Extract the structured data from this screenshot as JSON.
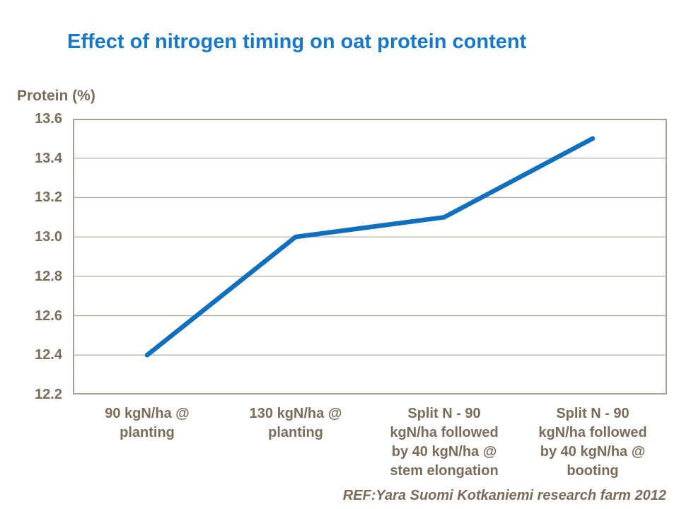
{
  "page": {
    "background_color": "#FFFFFF"
  },
  "header": {
    "title": "Effect of nitrogen timing on oat protein content",
    "title_color": "#1777C8"
  },
  "chart_data": {
    "type": "line",
    "title": "Effect of nitrogen timing on oat protein content",
    "xlabel": "",
    "ylabel": "Protein (%)",
    "categories": [
      "90 kgN/ha @ planting",
      "130 kgN/ha @ planting",
      "Split N - 90 kgN/ha followed by 40 kgN/ha @ stem elongation",
      "Split N - 90 kgN/ha followed by 40 kgN/ha @ booting"
    ],
    "category_lines": [
      [
        "90 kgN/ha @",
        "planting"
      ],
      [
        "130 kgN/ha @",
        "planting"
      ],
      [
        "Split N - 90",
        "kgN/ha followed",
        "by 40 kgN/ha @",
        "stem elongation"
      ],
      [
        "Split N - 90",
        "kgN/ha followed",
        "by 40 kgN/ha @",
        "booting"
      ]
    ],
    "values": [
      12.4,
      13.0,
      13.1,
      13.5
    ],
    "ylim": [
      12.2,
      13.6
    ],
    "ytick_labels": [
      "12.2",
      "12.4",
      "12.6",
      "12.8",
      "13.0",
      "13.2",
      "13.4",
      "13.6"
    ],
    "grid": true,
    "legend": "none",
    "line_color": "#1070BE"
  },
  "axis_style": {
    "text_color": "#7B6B59",
    "grid_color": "#B5ACA1",
    "border_color": "#A89E92"
  },
  "footer": {
    "ref_note": "REF:Yara Suomi Kotkaniemi research farm 2012"
  }
}
